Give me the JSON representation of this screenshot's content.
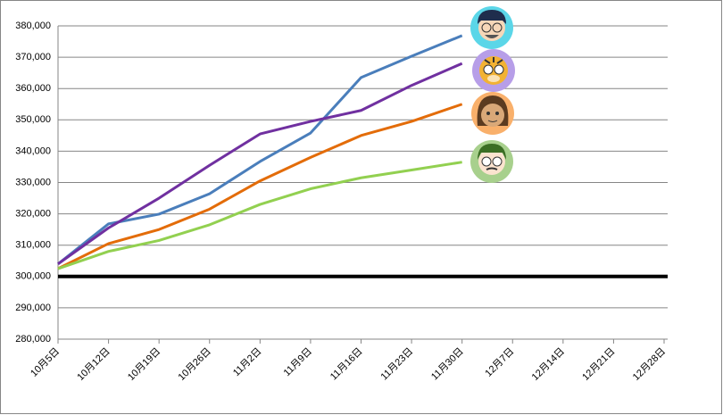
{
  "chart_data": {
    "type": "line",
    "categories": [
      "10月5日",
      "10月12日",
      "10月19日",
      "10月26日",
      "11月2日",
      "11月9日",
      "11月16日",
      "11月23日",
      "11月30日",
      "12月7日",
      "12月14日",
      "12月21日",
      "12月28日"
    ],
    "series": [
      {
        "color": "#4a7ebb",
        "values": [
          304000,
          316800,
          319900,
          326400,
          336700,
          345800,
          363500,
          370300,
          376900,
          null,
          null,
          null,
          null
        ]
      },
      {
        "color": "#7030a0",
        "values": [
          304000,
          315500,
          325000,
          335500,
          345500,
          349500,
          353000,
          361000,
          368000,
          null,
          null,
          null,
          null
        ]
      },
      {
        "color": "#e36c09",
        "values": [
          302500,
          310500,
          315000,
          321500,
          330500,
          338000,
          345000,
          349500,
          355000,
          null,
          null,
          null,
          null
        ]
      },
      {
        "color": "#92d050",
        "values": [
          302500,
          308000,
          311500,
          316500,
          323000,
          328000,
          331500,
          334000,
          336500,
          null,
          null,
          null,
          null
        ]
      }
    ],
    "reference_line": {
      "value": 300000,
      "color": "#000000"
    },
    "ylim": [
      280000,
      380000
    ],
    "yticks": [
      {
        "value": 280000,
        "label": "280,000"
      },
      {
        "value": 290000,
        "label": "290,000"
      },
      {
        "value": 300000,
        "label": "300,000"
      },
      {
        "value": 310000,
        "label": "310,000"
      },
      {
        "value": 320000,
        "label": "320,000"
      },
      {
        "value": 330000,
        "label": "330,000"
      },
      {
        "value": 340000,
        "label": "340,000"
      },
      {
        "value": 350000,
        "label": "350,000"
      },
      {
        "value": 360000,
        "label": "360,000"
      },
      {
        "value": 370000,
        "label": "370,000"
      },
      {
        "value": 380000,
        "label": "380,000"
      }
    ],
    "grid": true
  }
}
